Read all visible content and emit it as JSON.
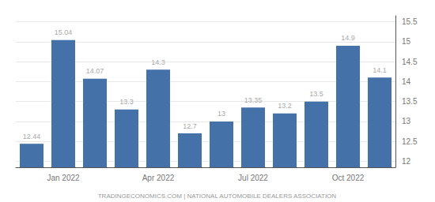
{
  "chart_data": {
    "type": "bar",
    "categories": [
      null,
      "Jan 2022",
      null,
      null,
      "Apr 2022",
      null,
      null,
      "Jul 2022",
      null,
      null,
      "Oct 2022",
      null
    ],
    "values": [
      12.44,
      15.04,
      14.07,
      13.3,
      14.3,
      12.7,
      13.0,
      13.35,
      13.2,
      13.5,
      14.9,
      14.1
    ],
    "color": "#4472a8",
    "ylim": [
      11.85,
      15.65
    ],
    "yticks": [
      12,
      12.5,
      13,
      13.5,
      14,
      14.5,
      15,
      15.5
    ],
    "grid": true,
    "data_labels": true,
    "annotations": [
      "TRADINGECONOMICS.COM | NATIONAL AUTOMOBILE DEALERS ASSOCIATION"
    ]
  }
}
